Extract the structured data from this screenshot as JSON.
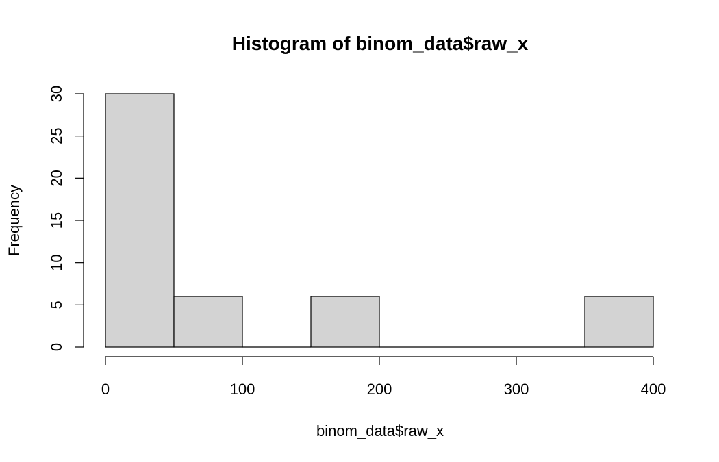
{
  "chart_data": {
    "type": "bar",
    "title": "Histogram of binom_data$raw_x",
    "xlabel": "binom_data$raw_x",
    "ylabel": "Frequency",
    "bins": [
      {
        "x0": 0,
        "x1": 50,
        "count": 30
      },
      {
        "x0": 50,
        "x1": 100,
        "count": 6
      },
      {
        "x0": 100,
        "x1": 150,
        "count": 0
      },
      {
        "x0": 150,
        "x1": 200,
        "count": 6
      },
      {
        "x0": 200,
        "x1": 250,
        "count": 0
      },
      {
        "x0": 250,
        "x1": 300,
        "count": 0
      },
      {
        "x0": 300,
        "x1": 350,
        "count": 0
      },
      {
        "x0": 350,
        "x1": 400,
        "count": 6
      }
    ],
    "xlim": [
      0,
      400
    ],
    "ylim": [
      0,
      30
    ],
    "x_ticks": [
      "0",
      "100",
      "200",
      "300",
      "400"
    ],
    "y_ticks": [
      "0",
      "5",
      "10",
      "15",
      "20",
      "25",
      "30"
    ],
    "bar_color": "#d3d3d3",
    "grid": false
  }
}
